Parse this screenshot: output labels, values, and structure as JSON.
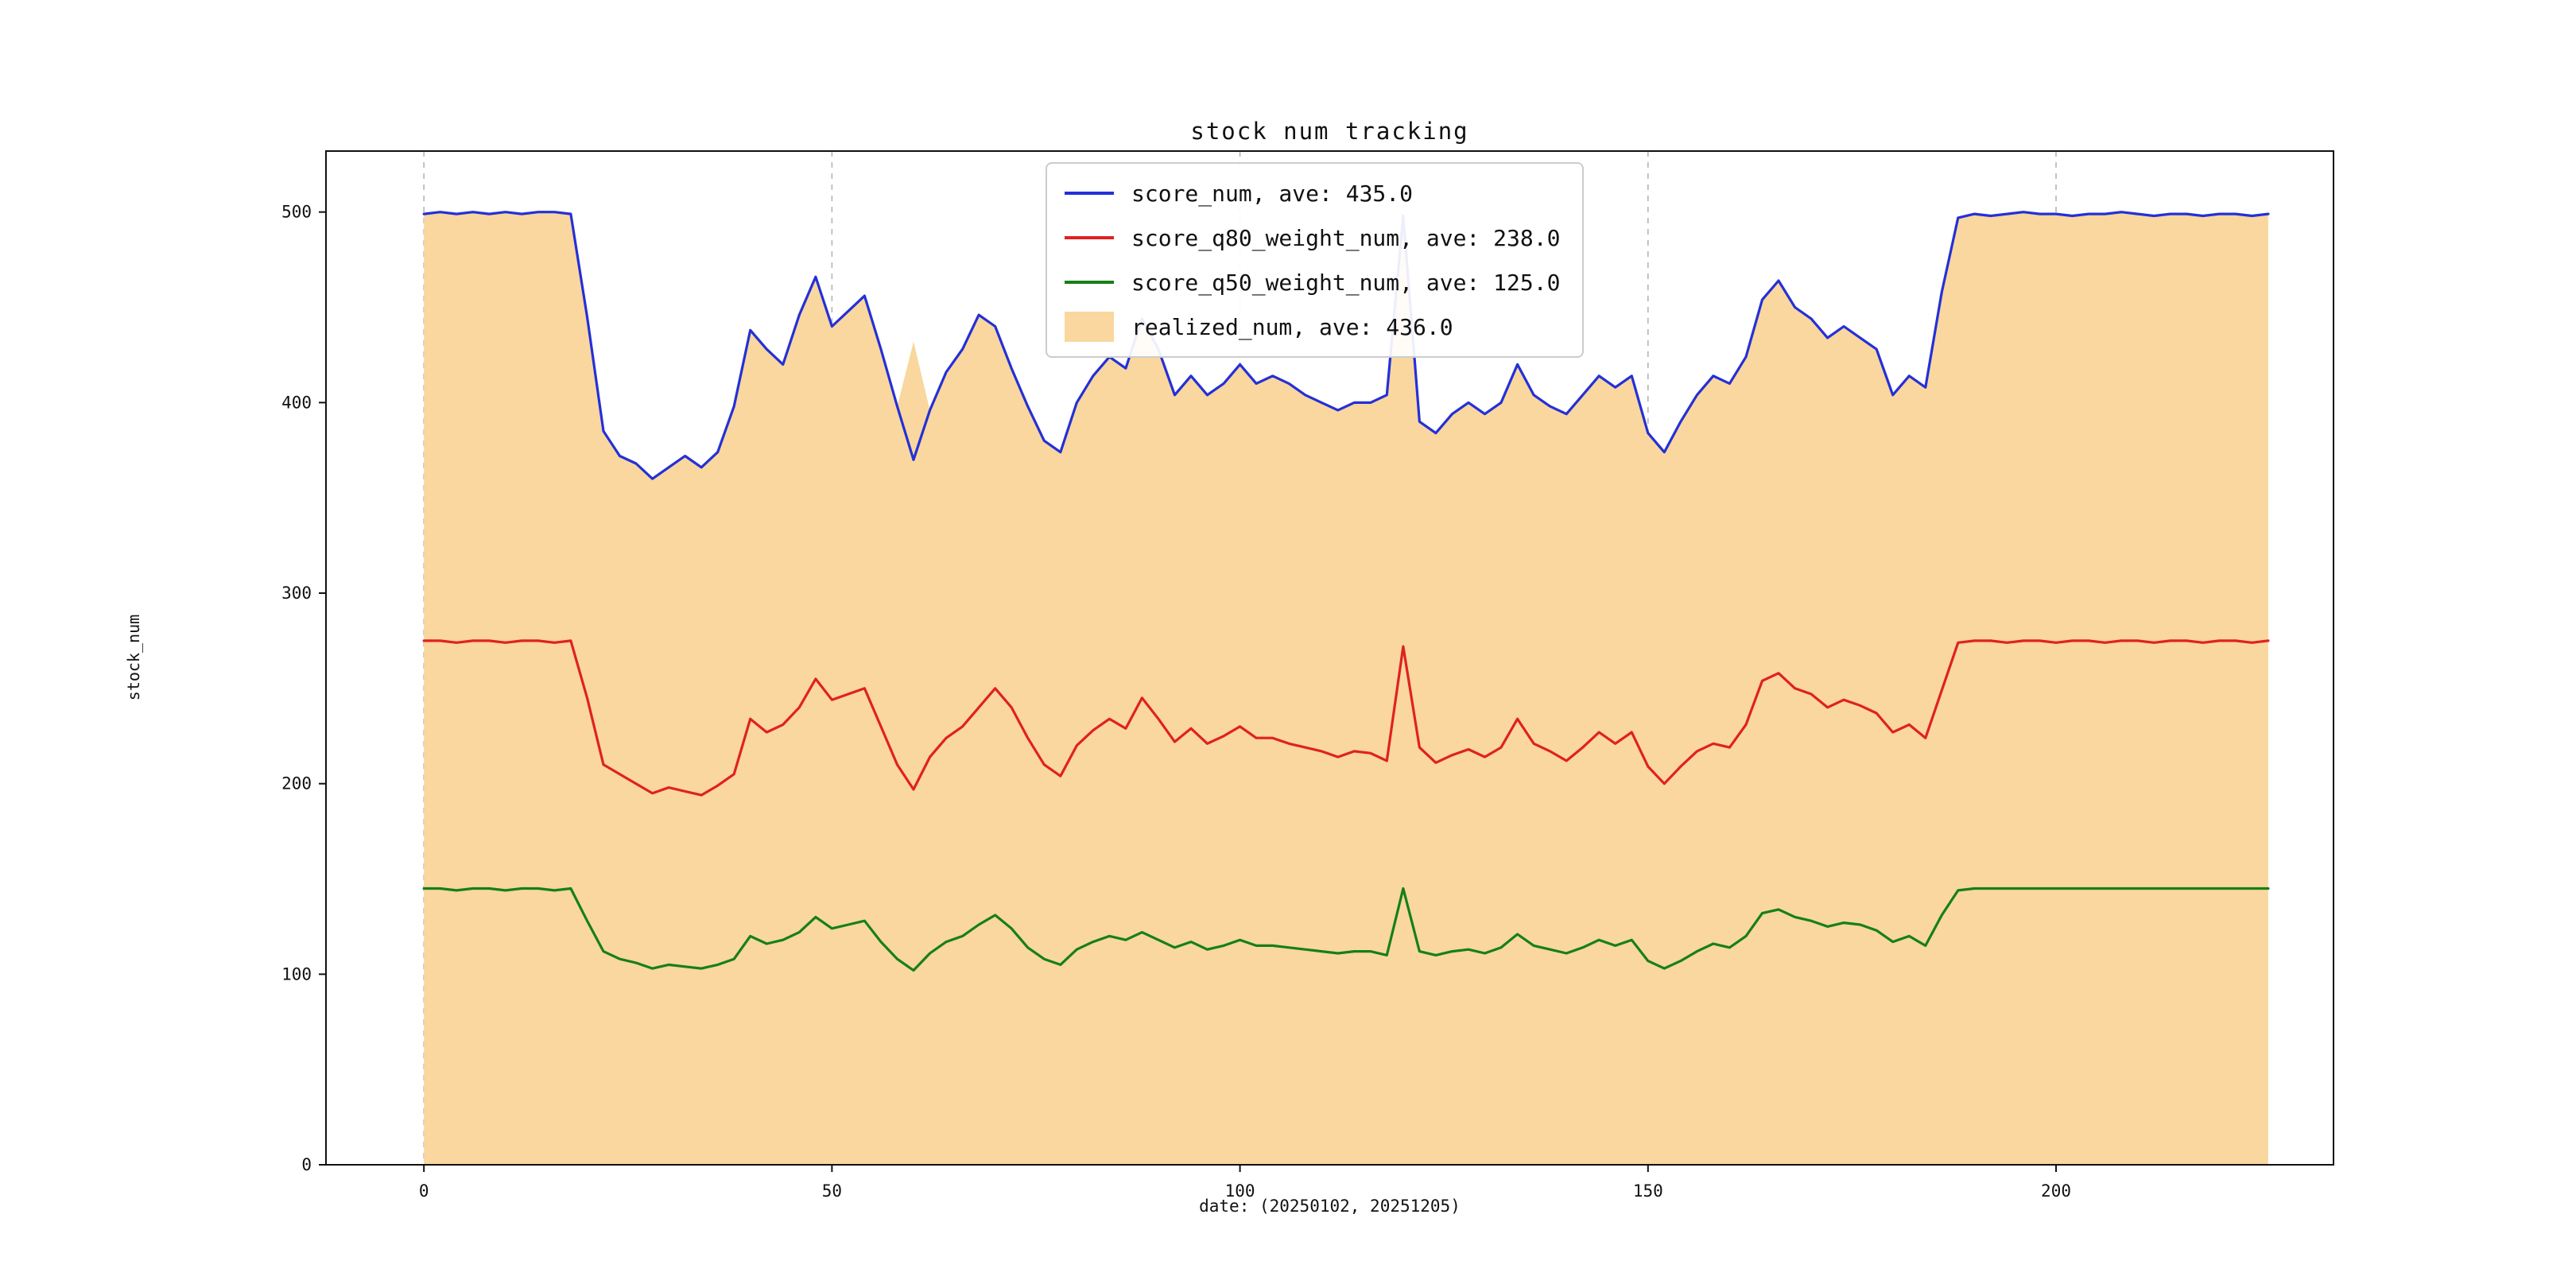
{
  "figure": {
    "title": "stock num tracking",
    "xlabel": "date: (20250102, 20251205)",
    "ylabel": "stock_num"
  },
  "chart_data": {
    "type": "line",
    "title": "stock num tracking",
    "xlabel": "date: (20250102, 20251205)",
    "ylabel": "stock_num",
    "xlim": [
      -12,
      234
    ],
    "ylim": [
      0,
      532
    ],
    "x_ticks": [
      0,
      50,
      100,
      150,
      200
    ],
    "y_ticks": [
      0,
      100,
      200,
      300,
      400,
      500
    ],
    "grid": {
      "vertical_dashed": true,
      "color": "#b5b5b5"
    },
    "legend_position": "upper center-left",
    "x_start": 0,
    "x_step": 2,
    "series": [
      {
        "name": "realized_num",
        "label": "realized_num, ave: 436.0",
        "type": "area",
        "color": "#f9d79e",
        "values": [
          499,
          500,
          499,
          500,
          499,
          500,
          499,
          500,
          500,
          499,
          445,
          385,
          372,
          368,
          360,
          366,
          372,
          366,
          374,
          398,
          438,
          428,
          420,
          446,
          466,
          440,
          448,
          456,
          428,
          398,
          432,
          396,
          416,
          428,
          446,
          440,
          418,
          398,
          380,
          374,
          400,
          414,
          424,
          418,
          446,
          428,
          404,
          414,
          404,
          410,
          420,
          410,
          414,
          410,
          404,
          400,
          396,
          400,
          400,
          404,
          500,
          390,
          384,
          394,
          400,
          394,
          400,
          420,
          404,
          398,
          394,
          404,
          414,
          408,
          414,
          384,
          374,
          390,
          404,
          414,
          410,
          424,
          454,
          464,
          450,
          444,
          434,
          440,
          434,
          428,
          404,
          414,
          408,
          458,
          497,
          499,
          498,
          499,
          500,
          499,
          499,
          498,
          499,
          499,
          500,
          499,
          498,
          499,
          499,
          498,
          499,
          499,
          498,
          499
        ]
      },
      {
        "name": "score_num",
        "label": "score_num, ave: 435.0",
        "type": "line",
        "color": "#2430d8",
        "values": [
          499,
          500,
          499,
          500,
          499,
          500,
          499,
          500,
          500,
          499,
          445,
          385,
          372,
          368,
          360,
          366,
          372,
          366,
          374,
          398,
          438,
          428,
          420,
          446,
          466,
          440,
          448,
          456,
          428,
          398,
          370,
          396,
          416,
          428,
          446,
          440,
          418,
          398,
          380,
          374,
          400,
          414,
          424,
          418,
          444,
          428,
          404,
          414,
          404,
          410,
          420,
          410,
          414,
          410,
          404,
          400,
          396,
          400,
          400,
          404,
          498,
          390,
          384,
          394,
          400,
          394,
          400,
          420,
          404,
          398,
          394,
          404,
          414,
          408,
          414,
          384,
          374,
          390,
          404,
          414,
          410,
          424,
          454,
          464,
          450,
          444,
          434,
          440,
          434,
          428,
          404,
          414,
          408,
          458,
          497,
          499,
          498,
          499,
          500,
          499,
          499,
          498,
          499,
          499,
          500,
          499,
          498,
          499,
          499,
          498,
          499,
          499,
          498,
          499
        ]
      },
      {
        "name": "score_q80_weight_num",
        "label": "score_q80_weight_num, ave: 238.0",
        "type": "line",
        "color": "#e02121",
        "values": [
          275,
          275,
          274,
          275,
          275,
          274,
          275,
          275,
          274,
          275,
          245,
          210,
          205,
          200,
          195,
          198,
          196,
          194,
          199,
          205,
          234,
          227,
          231,
          240,
          255,
          244,
          247,
          250,
          230,
          210,
          197,
          214,
          224,
          230,
          240,
          250,
          240,
          224,
          210,
          204,
          220,
          228,
          234,
          229,
          245,
          234,
          222,
          229,
          221,
          225,
          230,
          224,
          224,
          221,
          219,
          217,
          214,
          217,
          216,
          212,
          272,
          219,
          211,
          215,
          218,
          214,
          219,
          234,
          221,
          217,
          212,
          219,
          227,
          221,
          227,
          209,
          200,
          209,
          217,
          221,
          219,
          231,
          254,
          258,
          250,
          247,
          240,
          244,
          241,
          237,
          227,
          231,
          224,
          249,
          274,
          275,
          275,
          274,
          275,
          275,
          274,
          275,
          275,
          274,
          275,
          275,
          274,
          275,
          275,
          274,
          275,
          275,
          274,
          275
        ]
      },
      {
        "name": "score_q50_weight_num",
        "label": "score_q50_weight_num, ave: 125.0",
        "type": "line",
        "color": "#168016",
        "values": [
          145,
          145,
          144,
          145,
          145,
          144,
          145,
          145,
          144,
          145,
          128,
          112,
          108,
          106,
          103,
          105,
          104,
          103,
          105,
          108,
          120,
          116,
          118,
          122,
          130,
          124,
          126,
          128,
          117,
          108,
          102,
          111,
          117,
          120,
          126,
          131,
          124,
          114,
          108,
          105,
          113,
          117,
          120,
          118,
          122,
          118,
          114,
          117,
          113,
          115,
          118,
          115,
          115,
          114,
          113,
          112,
          111,
          112,
          112,
          110,
          145,
          112,
          110,
          112,
          113,
          111,
          114,
          121,
          115,
          113,
          111,
          114,
          118,
          115,
          118,
          107,
          103,
          107,
          112,
          116,
          114,
          120,
          132,
          134,
          130,
          128,
          125,
          127,
          126,
          123,
          117,
          120,
          115,
          131,
          144,
          145,
          145,
          145,
          145,
          145,
          145,
          145,
          145,
          145,
          145,
          145,
          145,
          145,
          145,
          145,
          145,
          145,
          145,
          145
        ]
      }
    ],
    "legend_order": [
      "score_num",
      "score_q80_weight_num",
      "score_q50_weight_num",
      "realized_num"
    ]
  }
}
